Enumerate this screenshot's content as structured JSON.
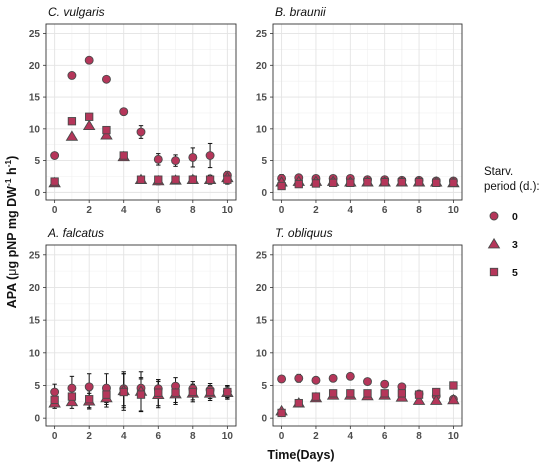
{
  "chart_data": {
    "type": "scatter",
    "x_label": "Time(Days)",
    "y_label_parts": {
      "prefix": "APA (",
      "mu": "μ",
      "main": "g pNP mg DW",
      "exp1": "-1",
      "mid": " h",
      "exp2": "-1",
      "suffix": ")"
    },
    "x_ticks": [
      0,
      2,
      4,
      6,
      8,
      10
    ],
    "y_ticks": [
      0,
      5,
      10,
      15,
      20,
      25
    ],
    "xlim": [
      -0.5,
      10.5
    ],
    "ylim": [
      -1.2,
      26.5
    ],
    "grid": true,
    "marker_color": "#b5365a",
    "marker_stroke": "#4a4a4a",
    "errorbar_color": "#111111",
    "legend": {
      "title_line1": "Starv.",
      "title_line2": "period (d.):",
      "placement": "right",
      "entries": [
        {
          "label": "0",
          "shape": "circle"
        },
        {
          "label": "3",
          "shape": "triangle"
        },
        {
          "label": "5",
          "shape": "square"
        }
      ]
    },
    "panels": [
      {
        "title": "C. vulgaris",
        "series": [
          {
            "name": "0",
            "shape": "circle",
            "x": [
              0,
              1,
              2,
              3,
              4,
              5,
              6,
              7,
              8,
              9,
              10
            ],
            "y": [
              5.8,
              18.4,
              20.8,
              17.8,
              12.7,
              9.5,
              5.2,
              5.0,
              5.5,
              5.8,
              2.7
            ],
            "err": [
              0.3,
              0.3,
              0.3,
              0.4,
              0.4,
              1.0,
              0.9,
              0.9,
              1.5,
              1.9,
              0.6
            ]
          },
          {
            "name": "3",
            "shape": "triangle",
            "x": [
              0,
              1,
              2,
              3,
              4,
              5,
              6,
              7,
              8,
              9,
              10
            ],
            "y": [
              1.5,
              8.8,
              10.5,
              9.0,
              5.6,
              2.0,
              1.8,
              1.9,
              2.0,
              2.0,
              2.3
            ],
            "err": [
              0.2,
              0.3,
              0.3,
              0.3,
              0.3,
              0.5,
              0.6,
              0.5,
              0.6,
              0.7,
              0.6
            ]
          },
          {
            "name": "5",
            "shape": "square",
            "x": [
              0,
              1,
              2,
              3,
              4,
              5,
              6,
              7,
              8,
              9,
              10
            ],
            "y": [
              1.7,
              11.2,
              11.9,
              9.8,
              5.8,
              2.0,
              2.0,
              2.0,
              2.0,
              2.0,
              2.0
            ],
            "err": [
              0.2,
              0.3,
              0.3,
              0.3,
              0.3,
              0.5,
              0.5,
              0.5,
              0.5,
              0.6,
              0.7
            ]
          }
        ]
      },
      {
        "title": "B. braunii",
        "series": [
          {
            "name": "0",
            "shape": "circle",
            "x": [
              0,
              1,
              2,
              3,
              4,
              5,
              6,
              7,
              8,
              9,
              10
            ],
            "y": [
              2.2,
              2.3,
              2.2,
              2.2,
              2.2,
              2.0,
              2.0,
              1.9,
              1.9,
              1.8,
              1.8
            ],
            "err": [
              0.6,
              0.5,
              0.5,
              0.5,
              0.5,
              0.4,
              0.4,
              0.4,
              0.4,
              0.4,
              0.4
            ]
          },
          {
            "name": "3",
            "shape": "triangle",
            "x": [
              0,
              1,
              2,
              3,
              4,
              5,
              6,
              7,
              8,
              9,
              10
            ],
            "y": [
              1.6,
              1.7,
              1.7,
              1.7,
              1.6,
              1.6,
              1.6,
              1.6,
              1.6,
              1.6,
              1.5
            ],
            "err": [
              0.5,
              0.5,
              0.5,
              0.5,
              0.5,
              0.4,
              0.4,
              0.4,
              0.4,
              0.4,
              0.4
            ]
          },
          {
            "name": "5",
            "shape": "square",
            "x": [
              0,
              1,
              2,
              3,
              4,
              5,
              6,
              7,
              8,
              9,
              10
            ],
            "y": [
              1.0,
              1.3,
              1.4,
              1.5,
              1.5,
              1.6,
              1.6,
              1.6,
              1.6,
              1.5,
              1.5
            ],
            "err": [
              0.4,
              0.4,
              0.4,
              0.4,
              0.4,
              0.4,
              0.4,
              0.4,
              0.4,
              0.4,
              0.4
            ]
          }
        ]
      },
      {
        "title": "A. falcatus",
        "series": [
          {
            "name": "0",
            "shape": "circle",
            "x": [
              0,
              1,
              2,
              3,
              4,
              5,
              6,
              7,
              8,
              9,
              10
            ],
            "y": [
              4.0,
              4.6,
              4.8,
              4.6,
              4.5,
              4.6,
              4.5,
              4.9,
              4.5,
              4.3,
              4.1
            ],
            "err": [
              1.2,
              1.8,
              2.0,
              2.2,
              2.6,
              1.4,
              1.4,
              1.3,
              1.1,
              1.0,
              0.9
            ]
          },
          {
            "name": "3",
            "shape": "triangle",
            "x": [
              0,
              1,
              2,
              3,
              4,
              5,
              6,
              7,
              8,
              9,
              10
            ],
            "y": [
              2.3,
              2.5,
              2.6,
              3.1,
              4.2,
              4.1,
              3.6,
              3.7,
              3.8,
              3.8,
              3.9
            ],
            "err": [
              0.8,
              1.0,
              1.2,
              1.4,
              2.6,
              3.0,
              2.0,
              1.6,
              1.3,
              1.1,
              1.0
            ]
          },
          {
            "name": "5",
            "shape": "square",
            "x": [
              0,
              1,
              2,
              3,
              4,
              5,
              6,
              7,
              8,
              9,
              10
            ],
            "y": [
              2.8,
              3.3,
              2.9,
              3.6,
              4.0,
              3.6,
              3.9,
              3.9,
              4.0,
              4.0,
              4.0
            ],
            "err": [
              0.9,
              1.1,
              1.3,
              1.5,
              2.8,
              2.6,
              2.0,
              1.5,
              1.2,
              1.0,
              0.9
            ]
          }
        ]
      },
      {
        "title": "T. obliquus",
        "series": [
          {
            "name": "0",
            "shape": "circle",
            "x": [
              0,
              1,
              2,
              3,
              4,
              5,
              6,
              7,
              8,
              9,
              10
            ],
            "y": [
              6.0,
              6.1,
              5.8,
              6.1,
              6.4,
              5.6,
              5.2,
              4.8,
              3.7,
              3.4,
              2.9
            ],
            "err": [
              0.3,
              0.6,
              0.3,
              0.3,
              0.3,
              0.3,
              0.3,
              0.5,
              0.4,
              0.4,
              0.4
            ]
          },
          {
            "name": "3",
            "shape": "triangle",
            "x": [
              0,
              1,
              2,
              3,
              4,
              5,
              6,
              7,
              8,
              9,
              10
            ],
            "y": [
              1.1,
              2.3,
              3.1,
              3.5,
              3.5,
              3.4,
              3.5,
              3.2,
              2.7,
              2.7,
              2.8
            ],
            "err": [
              0.3,
              0.3,
              0.4,
              0.4,
              0.4,
              0.4,
              0.4,
              0.4,
              0.4,
              0.4,
              0.4
            ]
          },
          {
            "name": "5",
            "shape": "square",
            "x": [
              0,
              1,
              2,
              3,
              4,
              5,
              6,
              7,
              8,
              9,
              10
            ],
            "y": [
              0.8,
              2.3,
              3.3,
              3.8,
              3.8,
              3.8,
              3.8,
              3.8,
              3.6,
              4.0,
              5.0
            ],
            "err": [
              0.3,
              0.3,
              0.4,
              0.4,
              0.4,
              0.4,
              0.4,
              0.4,
              0.4,
              0.4,
              0.4
            ]
          }
        ]
      }
    ]
  }
}
